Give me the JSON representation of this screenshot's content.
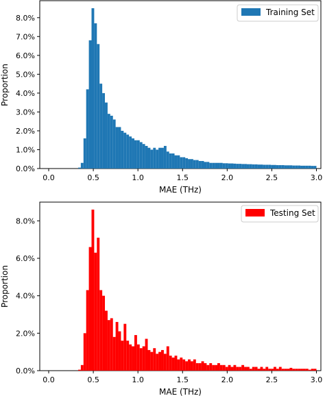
{
  "chart_data": [
    {
      "type": "bar",
      "xlabel": "MAE (THz)",
      "ylabel": "Proportion",
      "xlim": [
        -0.1,
        3.05
      ],
      "ylim": [
        0,
        0.089
      ],
      "xticks": [
        0.0,
        0.5,
        1.0,
        1.5,
        2.0,
        2.5,
        3.0
      ],
      "xtick_labels": [
        "0.0",
        "0.5",
        "1.0",
        "1.5",
        "2.0",
        "2.5",
        "3.0"
      ],
      "yticks": [
        0.0,
        0.01,
        0.02,
        0.03,
        0.04,
        0.05,
        0.06,
        0.07,
        0.08
      ],
      "ytick_labels": [
        "0.0%",
        "1.0%",
        "2.0%",
        "3.0%",
        "4.0%",
        "5.0%",
        "6.0%",
        "7.0%",
        "8.0%"
      ],
      "bin_width": 0.03,
      "bin_start": 0.0,
      "grid": false,
      "legend_position": "top-right",
      "series": [
        {
          "name": "Training Set",
          "color": "#1f77b4",
          "values": [
            0,
            0,
            0,
            0,
            0,
            0,
            0,
            0,
            0,
            0,
            0,
            0.0005,
            0.003,
            0.016,
            0.042,
            0.068,
            0.085,
            0.077,
            0.066,
            0.045,
            0.04,
            0.035,
            0.029,
            0.028,
            0.026,
            0.022,
            0.022,
            0.02,
            0.019,
            0.018,
            0.017,
            0.016,
            0.015,
            0.015,
            0.014,
            0.013,
            0.012,
            0.011,
            0.01,
            0.011,
            0.01,
            0.011,
            0.011,
            0.012,
            0.009,
            0.008,
            0.008,
            0.007,
            0.007,
            0.006,
            0.006,
            0.0055,
            0.005,
            0.005,
            0.0045,
            0.0045,
            0.004,
            0.004,
            0.0035,
            0.0035,
            0.003,
            0.003,
            0.003,
            0.003,
            0.003,
            0.0028,
            0.0028,
            0.0027,
            0.0027,
            0.0026,
            0.0025,
            0.0025,
            0.0024,
            0.0024,
            0.0023,
            0.0023,
            0.0022,
            0.0022,
            0.0021,
            0.0021,
            0.002,
            0.002,
            0.002,
            0.0019,
            0.0019,
            0.0018,
            0.0018,
            0.0018,
            0.0017,
            0.0017,
            0.0017,
            0.0016,
            0.0016,
            0.0016,
            0.0015,
            0.0015,
            0.0015,
            0.0015,
            0.0014,
            0.0014
          ]
        },
        {
          "name": "Testing Set",
          "color": "#ff0000",
          "values": [
            0,
            0,
            0,
            0,
            0,
            0,
            0,
            0,
            0,
            0,
            0,
            0.0005,
            0.003,
            0.02,
            0.043,
            0.066,
            0.086,
            0.063,
            0.071,
            0.043,
            0.04,
            0.032,
            0.027,
            0.028,
            0.018,
            0.026,
            0.021,
            0.016,
            0.025,
            0.016,
            0.014,
            0.013,
            0.019,
            0.014,
            0.012,
            0.013,
            0.017,
            0.011,
            0.01,
            0.012,
            0.009,
            0.01,
            0.011,
            0.009,
            0.013,
            0.008,
            0.007,
            0.008,
            0.006,
            0.007,
            0.006,
            0.005,
            0.006,
            0.005,
            0.006,
            0.004,
            0.004,
            0.005,
            0.004,
            0.003,
            0.004,
            0.003,
            0.003,
            0.004,
            0.003,
            0.003,
            0.002,
            0.003,
            0.002,
            0.003,
            0.002,
            0.002,
            0.003,
            0.002,
            0.002,
            0.001,
            0.002,
            0.002,
            0.001,
            0.002,
            0.001,
            0.002,
            0.001,
            0.001,
            0.002,
            0.001,
            0.002,
            0.001,
            0.001,
            0.001,
            0.0015,
            0.001,
            0.001,
            0.001,
            0.001,
            0.001,
            0.001,
            0.0005,
            0.001,
            0.001
          ]
        }
      ]
    },
    {
      "type": "bar",
      "xlabel": "MAE (THz)",
      "ylabel": "Proportion",
      "xlim": [
        -0.1,
        3.05
      ],
      "ylim": [
        0,
        0.09
      ],
      "xticks": [
        0.0,
        0.5,
        1.0,
        1.5,
        2.0,
        2.5,
        3.0
      ],
      "xtick_labels": [
        "0.0",
        "0.5",
        "1.0",
        "1.5",
        "2.0",
        "2.5",
        "3.0"
      ],
      "yticks": [
        0.0,
        0.02,
        0.04,
        0.06,
        0.08
      ],
      "ytick_labels": [
        "0.0%",
        "2.0%",
        "4.0%",
        "6.0%",
        "8.0%"
      ],
      "bin_width": 0.03,
      "bin_start": 0.0,
      "grid": false,
      "legend_position": "top-right",
      "series_ref": 1
    }
  ]
}
